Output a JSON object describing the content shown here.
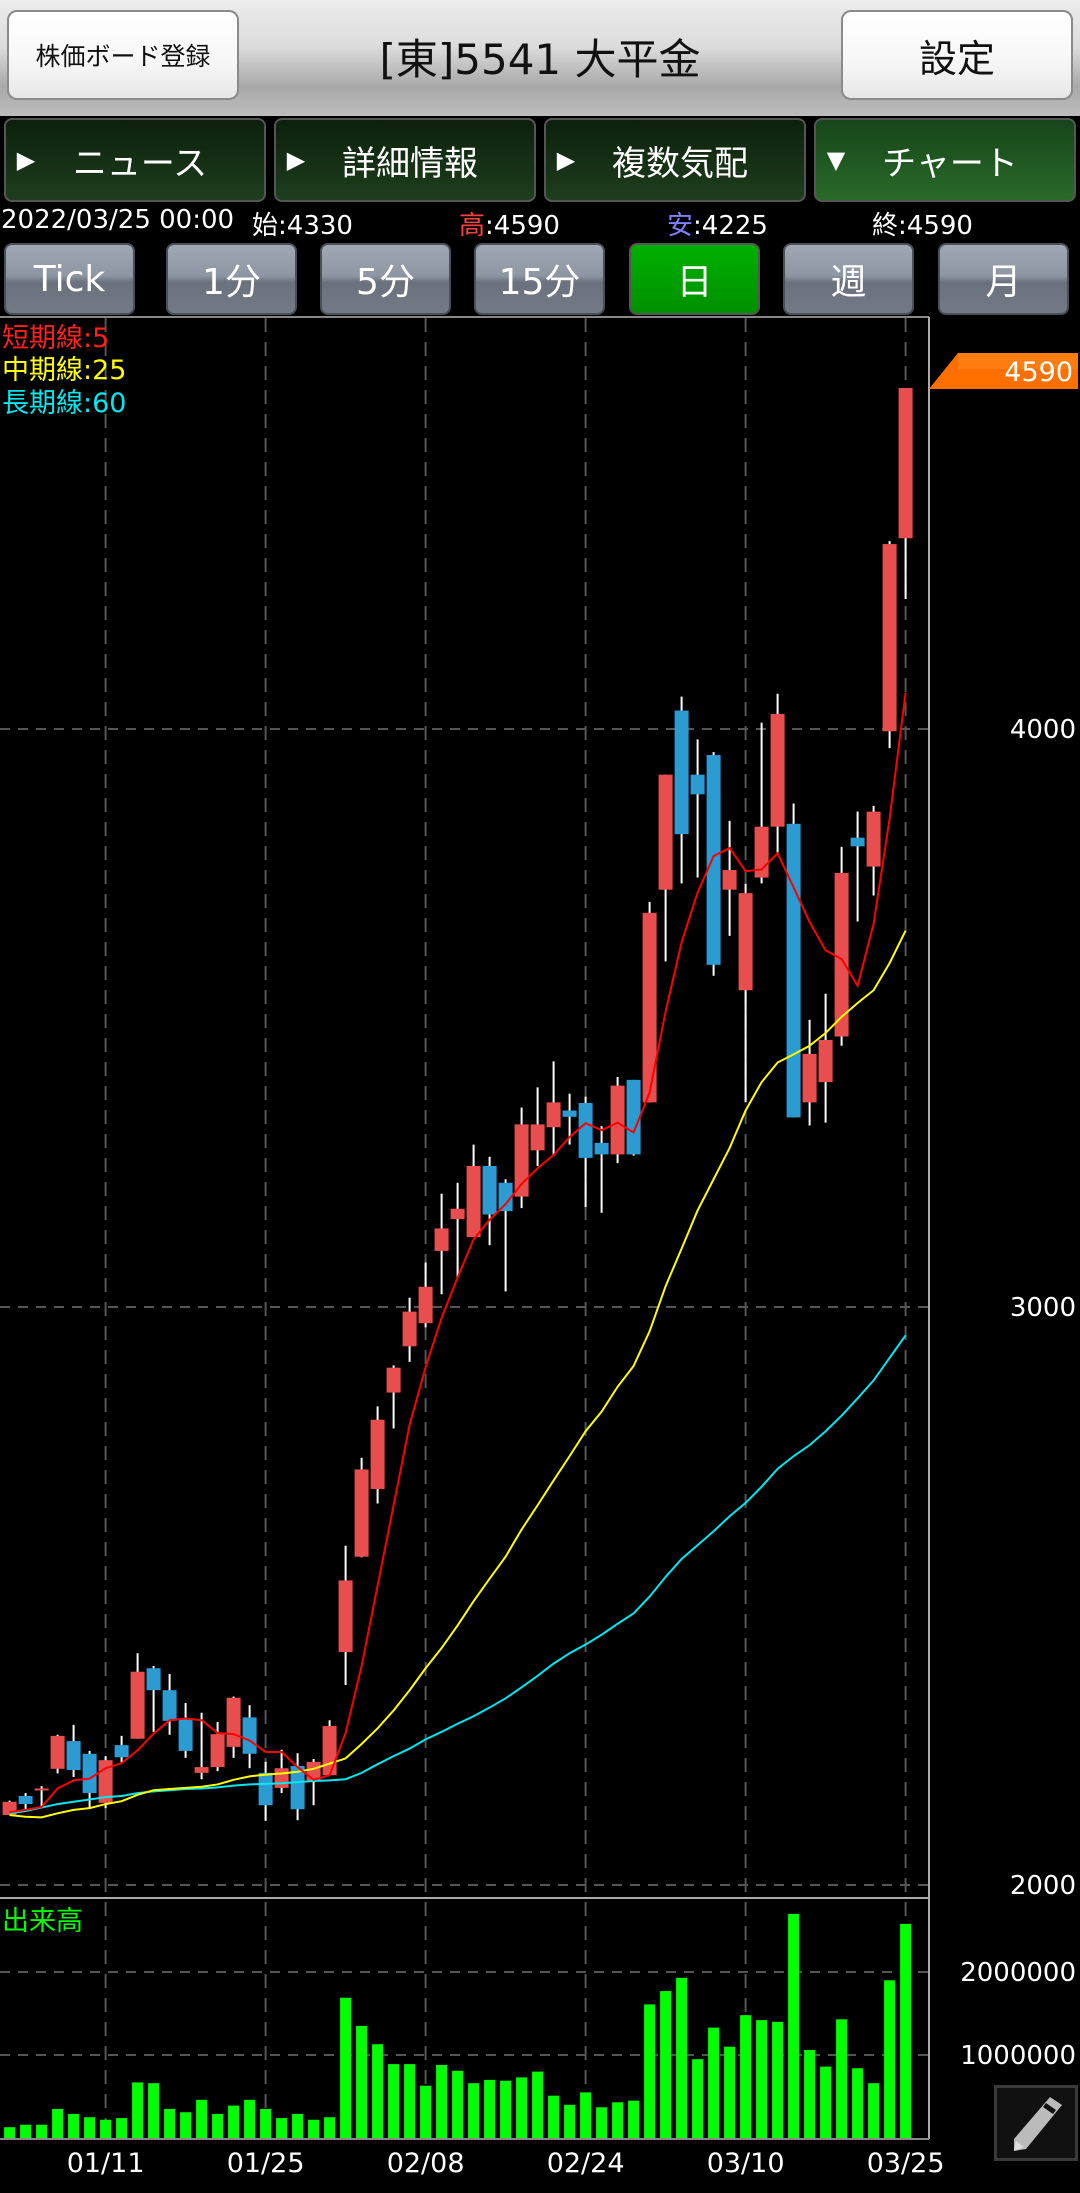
{
  "header": {
    "register_button": "株価ボード登録",
    "title": "[東]5541 大平金",
    "settings_button": "設定"
  },
  "tabs": [
    {
      "label": "ニュース",
      "icon": "triangle-right-icon",
      "active": false
    },
    {
      "label": "詳細情報",
      "icon": "triangle-right-icon",
      "active": false
    },
    {
      "label": "複数気配",
      "icon": "triangle-right-icon",
      "active": false
    },
    {
      "label": "チャート",
      "icon": "triangle-down-icon",
      "active": true
    }
  ],
  "info": {
    "datetime": "2022/03/25 00:00",
    "open_label": "始",
    "open": ":4330",
    "high_label": "高",
    "high": ":4590",
    "low_label": "安",
    "low": ":4225",
    "close_label": "終",
    "close": ":4590"
  },
  "periods": [
    {
      "label": "Tick",
      "active": false
    },
    {
      "label": "1分",
      "active": false
    },
    {
      "label": "5分",
      "active": false
    },
    {
      "label": "15分",
      "active": false
    },
    {
      "label": "日",
      "active": true
    },
    {
      "label": "週",
      "active": false
    },
    {
      "label": "月",
      "active": false
    }
  ],
  "legend": {
    "short": "短期線:5",
    "mid": "中期線:25",
    "long": "長期線:60",
    "volume": "出来高"
  },
  "colors": {
    "up": "#e84e4e",
    "down": "#2b9bd1",
    "ma_short": "#ff0000",
    "ma_mid": "#ffff00",
    "ma_long": "#00e8f0",
    "volume": "#00ff00",
    "price_tag": "#ff7000"
  },
  "chart_data": {
    "type": "candlestick",
    "price_ticks": [
      "4000",
      "3000",
      "2000"
    ],
    "price_tick_values": [
      4000,
      3000,
      2000
    ],
    "volume_ticks": [
      "2000000",
      "1000000"
    ],
    "volume_tick_values": [
      2000000,
      1000000
    ],
    "last_price_label": "4590",
    "x_ticks": [
      {
        "label": "01/11",
        "index": 7
      },
      {
        "label": "01/25",
        "index": 17
      },
      {
        "label": "02/08",
        "index": 27
      },
      {
        "label": "02/24",
        "index": 37
      },
      {
        "label": "03/10",
        "index": 47
      },
      {
        "label": "03/25",
        "index": 57
      }
    ],
    "ohlc": [
      [
        2121,
        2146,
        2121,
        2144
      ],
      [
        2154,
        2159,
        2130,
        2140
      ],
      [
        2165,
        2171,
        2135,
        2167
      ],
      [
        2201,
        2260,
        2193,
        2258
      ],
      [
        2249,
        2277,
        2187,
        2199
      ],
      [
        2227,
        2232,
        2133,
        2159
      ],
      [
        2142,
        2223,
        2133,
        2216
      ],
      [
        2242,
        2258,
        2211,
        2221
      ],
      [
        2253,
        2401,
        2253,
        2369
      ],
      [
        2375,
        2379,
        2265,
        2337
      ],
      [
        2337,
        2365,
        2260,
        2284
      ],
      [
        2287,
        2315,
        2220,
        2232
      ],
      [
        2194,
        2298,
        2183,
        2204
      ],
      [
        2204,
        2282,
        2197,
        2261
      ],
      [
        2239,
        2326,
        2220,
        2324
      ],
      [
        2290,
        2311,
        2202,
        2227
      ],
      [
        2194,
        2213,
        2111,
        2138
      ],
      [
        2168,
        2234,
        2159,
        2202
      ],
      [
        2206,
        2228,
        2112,
        2131
      ],
      [
        2180,
        2218,
        2138,
        2213
      ],
      [
        2190,
        2285,
        2190,
        2275
      ],
      [
        2403,
        2587,
        2346,
        2527
      ],
      [
        2568,
        2739,
        2567,
        2719
      ],
      [
        2685,
        2828,
        2660,
        2805
      ],
      [
        2852,
        2899,
        2790,
        2895
      ],
      [
        2932,
        3016,
        2905,
        2992
      ],
      [
        2972,
        3077,
        2965,
        3035
      ],
      [
        3097,
        3196,
        3022,
        3136
      ],
      [
        3152,
        3215,
        3050,
        3170
      ],
      [
        3121,
        3281,
        3121,
        3244
      ],
      [
        3244,
        3260,
        3107,
        3160
      ],
      [
        3215,
        3221,
        3027,
        3166
      ],
      [
        3191,
        3345,
        3171,
        3316
      ],
      [
        3271,
        3380,
        3244,
        3316
      ],
      [
        3311,
        3425,
        3261,
        3354
      ],
      [
        3340,
        3369,
        3281,
        3329
      ],
      [
        3353,
        3364,
        3173,
        3258
      ],
      [
        3284,
        3313,
        3163,
        3264
      ],
      [
        3264,
        3398,
        3249,
        3383
      ],
      [
        3393,
        3393,
        3262,
        3264
      ],
      [
        3354,
        3701,
        3354,
        3682
      ],
      [
        3722,
        3921,
        3598,
        3921
      ],
      [
        4032,
        4056,
        3733,
        3818
      ],
      [
        3921,
        3982,
        3743,
        3887
      ],
      [
        3955,
        3960,
        3573,
        3592
      ],
      [
        3722,
        3841,
        3642,
        3756
      ],
      [
        3548,
        3732,
        3354,
        3716
      ],
      [
        3743,
        4011,
        3733,
        3831
      ],
      [
        3831,
        4061,
        3785,
        4026
      ],
      [
        3836,
        3871,
        3328,
        3328
      ],
      [
        3354,
        3497,
        3314,
        3438
      ],
      [
        3389,
        3542,
        3319,
        3462
      ],
      [
        3468,
        3796,
        3452,
        3751
      ],
      [
        3812,
        3857,
        3667,
        3797
      ],
      [
        3762,
        3867,
        3712,
        3857
      ],
      [
        3996,
        4325,
        3967,
        4320
      ],
      [
        4330,
        4590,
        4225,
        4590
      ]
    ],
    "ma5": [
      2126,
      2130,
      2135,
      2167,
      2181,
      2184,
      2202,
      2211,
      2233,
      2262,
      2285,
      2288,
      2285,
      2263,
      2261,
      2250,
      2230,
      2230,
      2204,
      2182,
      2190,
      2263,
      2379,
      2518,
      2657,
      2796,
      2896,
      2981,
      3051,
      3117,
      3151,
      3178,
      3213,
      3240,
      3263,
      3294,
      3318,
      3306,
      3319,
      3302,
      3371,
      3511,
      3631,
      3717,
      3780,
      3794,
      3754,
      3757,
      3785,
      3726,
      3666,
      3617,
      3602,
      3556,
      3663,
      3845,
      4063
    ],
    "ma25": [
      2121,
      2118,
      2117,
      2124,
      2130,
      2133,
      2140,
      2145,
      2156,
      2164,
      2166,
      2168,
      2170,
      2174,
      2182,
      2188,
      2191,
      2193,
      2196,
      2201,
      2210,
      2219,
      2244,
      2271,
      2302,
      2337,
      2375,
      2410,
      2449,
      2491,
      2530,
      2568,
      2615,
      2657,
      2700,
      2742,
      2785,
      2819,
      2862,
      2898,
      2958,
      3036,
      3101,
      3167,
      3221,
      3275,
      3340,
      3389,
      3423,
      3437,
      3452,
      3474,
      3502,
      3526,
      3548,
      3595,
      3651
    ],
    "ma60": [
      2124,
      2128,
      2134,
      2140,
      2144,
      2148,
      2152,
      2154,
      2159,
      2162,
      2164,
      2166,
      2167,
      2169,
      2172,
      2174,
      2175,
      2176,
      2178,
      2180,
      2181,
      2183,
      2194,
      2209,
      2223,
      2236,
      2252,
      2265,
      2279,
      2292,
      2307,
      2323,
      2342,
      2362,
      2383,
      2401,
      2416,
      2433,
      2452,
      2470,
      2499,
      2533,
      2564,
      2588,
      2612,
      2638,
      2661,
      2689,
      2720,
      2742,
      2761,
      2785,
      2812,
      2842,
      2873,
      2912,
      2951
    ],
    "volume": [
      130000,
      160000,
      160000,
      350000,
      290000,
      250000,
      220000,
      240000,
      670000,
      660000,
      350000,
      310000,
      460000,
      290000,
      390000,
      460000,
      350000,
      240000,
      290000,
      220000,
      250000,
      1690000,
      1350000,
      1130000,
      890000,
      890000,
      630000,
      880000,
      810000,
      660000,
      700000,
      690000,
      730000,
      800000,
      510000,
      400000,
      550000,
      370000,
      430000,
      450000,
      1610000,
      1770000,
      1930000,
      950000,
      1330000,
      1100000,
      1480000,
      1420000,
      1400000,
      2700000,
      1060000,
      860000,
      1430000,
      840000,
      660000,
      1900000,
      2580000
    ]
  }
}
